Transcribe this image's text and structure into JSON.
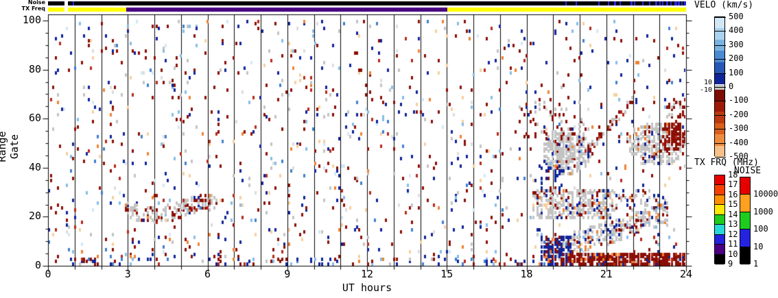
{
  "chart_data": {
    "type": "scatter",
    "subtype": "radar-range-time-parameter-plot",
    "xlabel": "UT hours",
    "ylabel": "Range Gate",
    "x_range": [
      0,
      24
    ],
    "y_range": [
      0,
      100
    ],
    "x_major_ticks": [
      0,
      3,
      6,
      9,
      12,
      15,
      18,
      21,
      24
    ],
    "x_minor_step": 1,
    "y_major_ticks": [
      0,
      20,
      40,
      60,
      80,
      100
    ],
    "y_minor_step": 5,
    "hour_gridlines": true,
    "palette": {
      "darkred": "#8b0f06",
      "red": "#b52a1b",
      "orange": "#ef8232",
      "paleorange": "#f7cf9e",
      "navy": "#10249a",
      "blue": "#3f7fce",
      "lightblue": "#85bde8",
      "paleblue": "#d2e7f6",
      "gray": "#c3c3c3",
      "lightgray": "#dddddd"
    },
    "colorbars": {
      "velo": {
        "title": "VELO (km/s)",
        "labels": [
          "500",
          "400",
          "300",
          "200",
          "100",
          "0",
          "-100",
          "-200",
          "-300",
          "-400",
          "-500"
        ],
        "side_labels": [
          "10",
          "-10"
        ],
        "blue_blocks": [
          "#d2e7f6",
          "#abd2ee",
          "#78b4e2",
          "#4a8ad2",
          "#2659b6",
          "#10249a"
        ],
        "gray_band": "#c3c3c3",
        "red_blocks": [
          "#7d0d04",
          "#9e1a08",
          "#bc3a0e",
          "#d85f1c",
          "#ee8c3e",
          "#f6c088"
        ]
      },
      "txfrq": {
        "title": "TX FRQ (MHz)",
        "labels": [
          "18",
          "17",
          "16",
          "15",
          "14",
          "13",
          "12",
          "11",
          "10",
          "9"
        ],
        "blocks": [
          "#e60000",
          "#f54000",
          "#ff9100",
          "#ffe900",
          "#1ecc1e",
          "#29d8d8",
          "#2424e0",
          "#4b0082",
          "#000000"
        ]
      },
      "noise": {
        "title": "NOISE",
        "labels": [
          "10000",
          "1000",
          "100",
          "10",
          "1"
        ],
        "blocks": [
          "#e60000",
          "#ffa020",
          "#1ecc1e",
          "#2424e0",
          "#000000"
        ]
      }
    },
    "strips": {
      "noise": {
        "label": "Noise",
        "segments": [
          {
            "t0": 0.0,
            "t1": 0.62,
            "color": "#000000"
          },
          {
            "t0": 0.62,
            "t1": 0.74,
            "color": "#ffffff"
          },
          {
            "t0": 0.74,
            "t1": 24.0,
            "color": "#000000"
          }
        ],
        "tick_color": "#2a2ae0",
        "ticks": [
          {
            "t": 0.93,
            "w": 2
          },
          {
            "t": 19.45,
            "w": 2
          },
          {
            "t": 19.85,
            "w": 2
          },
          {
            "t": 20.7,
            "w": 2
          },
          {
            "t": 21.05,
            "w": 2
          },
          {
            "t": 21.3,
            "w": 3
          },
          {
            "t": 21.5,
            "w": 2
          },
          {
            "t": 21.9,
            "w": 3
          },
          {
            "t": 22.05,
            "w": 2
          },
          {
            "t": 22.35,
            "w": 2
          },
          {
            "t": 22.6,
            "w": 2
          },
          {
            "t": 22.85,
            "w": 3
          },
          {
            "t": 23.0,
            "w": 2
          },
          {
            "t": 23.1,
            "w": 2
          },
          {
            "t": 23.25,
            "w": 3
          },
          {
            "t": 23.4,
            "w": 2
          },
          {
            "t": 23.55,
            "w": 4
          },
          {
            "t": 23.7,
            "w": 3
          },
          {
            "t": 23.82,
            "w": 2
          },
          {
            "t": 23.93,
            "w": 3
          }
        ]
      },
      "txfreq": {
        "label": "TX Freq",
        "segments": [
          {
            "t0": 0.0,
            "t1": 0.62,
            "color": "#ffff00"
          },
          {
            "t0": 0.62,
            "t1": 0.74,
            "color": "#ffffff"
          },
          {
            "t0": 0.74,
            "t1": 2.95,
            "color": "#ffff00"
          },
          {
            "t0": 2.95,
            "t1": 15.02,
            "color": "#4b0082"
          },
          {
            "t0": 15.02,
            "t1": 24.0,
            "color": "#ffff00"
          }
        ]
      }
    },
    "scatter": {
      "seed": 1337,
      "n": 1150,
      "weights": {
        "darkred": 0.25,
        "red": 0.06,
        "navy": 0.21,
        "blue": 0.05,
        "lightblue": 0.09,
        "paleblue": 0.05,
        "orange": 0.05,
        "paleorange": 0.08,
        "gray": 0.11,
        "lightgray": 0.05
      },
      "bottom_extra": {
        "n": 110,
        "t_max": 19.0,
        "g_max": 3.5,
        "weights": {
          "darkred": 0.4,
          "navy": 0.25,
          "red": 0.1,
          "blue": 0.05,
          "orange": 0.08,
          "lightblue": 0.07,
          "gray": 0.05
        }
      }
    },
    "features": [
      {
        "kind": "wavyband",
        "t": [
          2.95,
          6.4
        ],
        "base": 22.5,
        "amp": 2.5,
        "freq": 1.55,
        "hw": 3.2,
        "fill": 0.5,
        "colors": {
          "gray": 0.6,
          "darkred": 0.24,
          "red": 0.05,
          "navy": 0.06,
          "orange": 0.05
        }
      },
      {
        "kind": "blob",
        "t": [
          18.55,
          20.4
        ],
        "g": [
          36,
          56
        ],
        "fill": 0.7,
        "colors": {
          "gray": 0.8,
          "navy": 0.08,
          "darkred": 0.08,
          "orange": 0.02,
          "lightblue": 0.02
        }
      },
      {
        "kind": "rect",
        "t": [
          18.6,
          19.5
        ],
        "g": [
          30,
          40
        ],
        "fill": 0.28,
        "colors": {
          "navy": 0.75,
          "darkred": 0.2,
          "blue": 0.05
        }
      },
      {
        "kind": "blob",
        "t": [
          21.7,
          24.05
        ],
        "g": [
          40,
          58
        ],
        "fill": 0.6,
        "colors": {
          "gray": 0.8,
          "darkred": 0.1,
          "navy": 0.05,
          "orange": 0.05
        }
      },
      {
        "kind": "blob",
        "t": [
          22.95,
          24.05
        ],
        "g": [
          46,
          58
        ],
        "fill": 0.8,
        "colors": {
          "darkred": 0.85,
          "red": 0.1,
          "gray": 0.05
        }
      },
      {
        "kind": "rect",
        "t": [
          18.25,
          21.3
        ],
        "g": [
          19,
          31
        ],
        "fill": 0.5,
        "colors": {
          "gray": 0.64,
          "darkred": 0.12,
          "navy": 0.08,
          "orange": 0.05,
          "lightblue": 0.06,
          "paleorange": 0.05
        }
      },
      {
        "kind": "rect",
        "t": [
          21.3,
          23.3
        ],
        "g": [
          22,
          31
        ],
        "fill": 0.18,
        "colors": {
          "gray": 0.6,
          "darkred": 0.2,
          "navy": 0.1,
          "lightblue": 0.1
        }
      },
      {
        "kind": "slope",
        "t": [
          18.8,
          23.3
        ],
        "g0": 5,
        "g1": 21,
        "hw": 4.5,
        "fill": 0.55,
        "colors": {
          "gray": 0.6,
          "darkred": 0.15,
          "navy": 0.1,
          "orange": 0.06,
          "lightblue": 0.05,
          "paleorange": 0.04
        }
      },
      {
        "kind": "rect",
        "t": [
          19.3,
          24.05
        ],
        "g": [
          0,
          4.5
        ],
        "fill": 0.8,
        "colors": {
          "darkred": 0.76,
          "red": 0.08,
          "orange": 0.06,
          "navy": 0.06,
          "gray": 0.04
        }
      },
      {
        "kind": "rect",
        "t": [
          18.55,
          19.7
        ],
        "g": [
          0,
          12
        ],
        "fill": 0.45,
        "colors": {
          "navy": 0.72,
          "darkred": 0.16,
          "blue": 0.06,
          "orange": 0.06
        }
      },
      {
        "kind": "slope",
        "t": [
          20.0,
          22.0
        ],
        "g0": 43,
        "g1": 67,
        "hw": 1.6,
        "fill": 0.5,
        "colors": {
          "gray": 0.5,
          "darkred": 0.4,
          "red": 0.1
        }
      },
      {
        "kind": "rect",
        "t": [
          17.95,
          20.3
        ],
        "g": [
          50,
          67
        ],
        "fill": 0.12,
        "colors": {
          "darkred": 0.6,
          "gray": 0.25,
          "navy": 0.15
        }
      },
      {
        "kind": "rect",
        "t": [
          23.3,
          24.05
        ],
        "g": [
          60,
          68
        ],
        "fill": 0.3,
        "colors": {
          "darkred": 0.75,
          "gray": 0.25
        }
      }
    ]
  }
}
